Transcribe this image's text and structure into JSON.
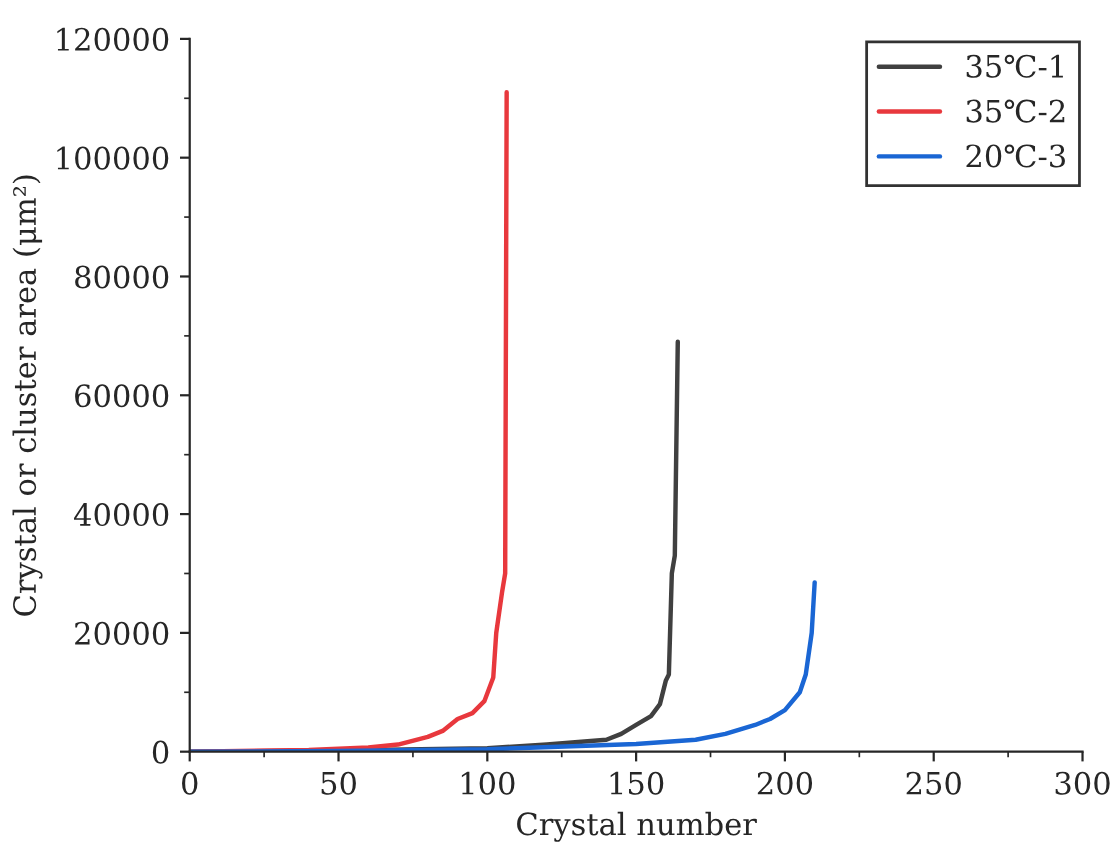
{
  "chart_data": {
    "type": "line",
    "xlabel": "Crystal number",
    "ylabel": "Crystal or cluster area (μm²)",
    "xlim": [
      0,
      300
    ],
    "xticks": [
      0,
      50,
      100,
      150,
      200,
      250,
      300
    ],
    "ylim": [
      0,
      120000
    ],
    "yticks": [
      0,
      20000,
      40000,
      60000,
      80000,
      100000,
      120000
    ],
    "grid": false,
    "legend": "top right",
    "marker": "none",
    "line_style": "solid",
    "series": [
      {
        "name": "35℃-1",
        "color": "#404040",
        "x": [
          0,
          50,
          100,
          120,
          140,
          145,
          150,
          155,
          158,
          160,
          161,
          162,
          163,
          164
        ],
        "values": [
          0,
          200,
          600,
          1200,
          2000,
          3000,
          4500,
          6000,
          8000,
          12000,
          13000,
          30000,
          33000,
          69000
        ]
      },
      {
        "name": "35℃-2",
        "color": "#e8383d",
        "x": [
          0,
          40,
          60,
          70,
          80,
          85,
          90,
          95,
          99,
          102,
          103,
          105,
          106,
          106.5
        ],
        "values": [
          0,
          300,
          700,
          1200,
          2500,
          3500,
          5500,
          6500,
          8500,
          12500,
          20000,
          27000,
          30000,
          111000
        ]
      },
      {
        "name": "20℃-3",
        "color": "#1a66d4",
        "x": [
          0,
          50,
          100,
          150,
          170,
          180,
          190,
          195,
          200,
          205,
          207,
          209,
          210
        ],
        "values": [
          0,
          100,
          400,
          1300,
          2000,
          3000,
          4500,
          5500,
          7000,
          10000,
          13000,
          20000,
          28500
        ]
      }
    ]
  }
}
